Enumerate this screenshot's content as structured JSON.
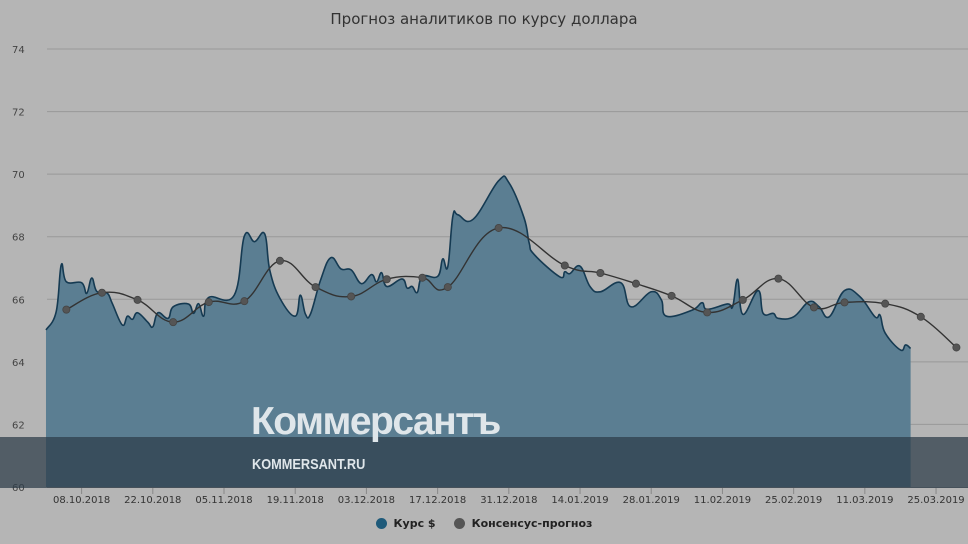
{
  "chart_data": {
    "type": "area",
    "title": "Прогноз аналитиков по курсу доллара",
    "xlabel": "",
    "ylabel": "",
    "ylim": [
      60,
      74
    ],
    "yticks": [
      "60",
      "62",
      "64",
      "66",
      "68",
      "70",
      "72",
      "74"
    ],
    "xticks": [
      "08.10.2018",
      "22.10.2018",
      "05.11.2018",
      "19.11.2018",
      "03.12.2018",
      "17.12.2018",
      "31.12.2018",
      "14.01.2019",
      "28.01.2019",
      "11.02.2019",
      "25.02.2019",
      "11.03.2019",
      "25.03.2019"
    ],
    "grid": true,
    "legend": "bottom",
    "colors": {
      "background": "#b5b5b5",
      "area_fill": "#5b7e92",
      "area_line": "#153a52",
      "consensus_line": "#333333",
      "consensus_point": "#555555",
      "legend_rate": "#1e5a7a"
    },
    "series": [
      {
        "name": "Курс $",
        "type": "area",
        "points": [
          [
            "01.10.2018",
            65.02
          ],
          [
            "03.10.2018",
            65.6
          ],
          [
            "04.10.2018",
            67.1
          ],
          [
            "05.10.2018",
            66.56
          ],
          [
            "08.10.2018",
            66.53
          ],
          [
            "09.10.2018",
            66.19
          ],
          [
            "10.10.2018",
            66.68
          ],
          [
            "11.10.2018",
            66.25
          ],
          [
            "13.10.2018",
            66.2
          ],
          [
            "14.10.2018",
            65.88
          ],
          [
            "16.10.2018",
            65.18
          ],
          [
            "17.10.2018",
            65.46
          ],
          [
            "18.10.2018",
            65.36
          ],
          [
            "19.10.2018",
            65.57
          ],
          [
            "21.10.2018",
            65.27
          ],
          [
            "22.10.2018",
            65.12
          ],
          [
            "23.10.2018",
            65.57
          ],
          [
            "25.10.2018",
            65.39
          ],
          [
            "26.10.2018",
            65.76
          ],
          [
            "29.10.2018",
            65.85
          ],
          [
            "30.10.2018",
            65.55
          ],
          [
            "31.10.2018",
            65.86
          ],
          [
            "01.11.2018",
            65.46
          ],
          [
            "02.11.2018",
            66.06
          ],
          [
            "07.11.2018",
            66.13
          ],
          [
            "09.11.2018",
            68.02
          ],
          [
            "11.11.2018",
            67.84
          ],
          [
            "13.11.2018",
            68.09
          ],
          [
            "14.11.2018",
            66.93
          ],
          [
            "16.11.2018",
            66.03
          ],
          [
            "19.11.2018",
            65.46
          ],
          [
            "20.11.2018",
            66.13
          ],
          [
            "21.11.2018",
            65.53
          ],
          [
            "22.11.2018",
            65.53
          ],
          [
            "24.11.2018",
            66.62
          ],
          [
            "26.11.2018",
            67.33
          ],
          [
            "28.11.2018",
            66.97
          ],
          [
            "30.11.2018",
            66.94
          ],
          [
            "02.12.2018",
            66.5
          ],
          [
            "04.12.2018",
            66.79
          ],
          [
            "05.12.2018",
            66.56
          ],
          [
            "06.12.2018",
            66.85
          ],
          [
            "07.12.2018",
            66.41
          ],
          [
            "10.12.2018",
            66.65
          ],
          [
            "11.12.2018",
            66.36
          ],
          [
            "12.12.2018",
            66.41
          ],
          [
            "13.12.2018",
            66.22
          ],
          [
            "14.12.2018",
            66.73
          ],
          [
            "17.12.2018",
            66.73
          ],
          [
            "18.12.2018",
            67.29
          ],
          [
            "19.12.2018",
            67.04
          ],
          [
            "20.12.2018",
            68.66
          ],
          [
            "21.12.2018",
            68.7
          ],
          [
            "24.12.2018",
            68.56
          ],
          [
            "29.12.2018",
            69.79
          ],
          [
            "31.12.2018",
            69.73
          ],
          [
            "03.01.2019",
            68.6
          ],
          [
            "04.01.2019",
            67.8
          ],
          [
            "05.01.2019",
            67.43
          ],
          [
            "10.01.2019",
            66.72
          ],
          [
            "11.01.2019",
            66.88
          ],
          [
            "12.01.2019",
            66.82
          ],
          [
            "14.01.2019",
            67.06
          ],
          [
            "16.01.2019",
            66.4
          ],
          [
            "18.01.2019",
            66.24
          ],
          [
            "22.01.2019",
            66.53
          ],
          [
            "24.01.2019",
            65.76
          ],
          [
            "28.01.2019",
            66.24
          ],
          [
            "30.01.2019",
            65.98
          ],
          [
            "31.01.2019",
            65.46
          ],
          [
            "05.02.2019",
            65.65
          ],
          [
            "07.02.2019",
            65.89
          ],
          [
            "08.02.2019",
            65.68
          ],
          [
            "12.02.2019",
            65.85
          ],
          [
            "13.02.2019",
            65.76
          ],
          [
            "14.02.2019",
            66.64
          ],
          [
            "15.02.2019",
            65.52
          ],
          [
            "18.02.2019",
            66.28
          ],
          [
            "19.02.2019",
            65.55
          ],
          [
            "21.02.2019",
            65.55
          ],
          [
            "22.02.2019",
            65.39
          ],
          [
            "25.02.2019",
            65.44
          ],
          [
            "28.02.2019",
            65.92
          ],
          [
            "02.03.2019",
            65.76
          ],
          [
            "04.03.2019",
            65.44
          ],
          [
            "07.03.2019",
            66.28
          ],
          [
            "10.03.2019",
            66.09
          ],
          [
            "13.03.2019",
            65.44
          ],
          [
            "14.03.2019",
            65.49
          ],
          [
            "15.03.2019",
            64.92
          ],
          [
            "18.03.2019",
            64.38
          ],
          [
            "19.03.2019",
            64.54
          ],
          [
            "20.03.2019",
            64.43
          ]
        ]
      },
      {
        "name": "Консенсус-прогноз",
        "type": "line",
        "points": [
          [
            "05.10.2018",
            65.67
          ],
          [
            "12.10.2018",
            66.21
          ],
          [
            "19.10.2018",
            65.98
          ],
          [
            "26.10.2018",
            65.27
          ],
          [
            "02.11.2018",
            65.91
          ],
          [
            "09.11.2018",
            65.94
          ],
          [
            "16.11.2018",
            67.23
          ],
          [
            "23.11.2018",
            66.39
          ],
          [
            "30.11.2018",
            66.09
          ],
          [
            "07.12.2018",
            66.64
          ],
          [
            "14.12.2018",
            66.69
          ],
          [
            "19.12.2018",
            66.39
          ],
          [
            "29.12.2018",
            68.28
          ],
          [
            "11.01.2019",
            67.08
          ],
          [
            "18.01.2019",
            66.84
          ],
          [
            "25.01.2019",
            66.5
          ],
          [
            "01.02.2019",
            66.11
          ],
          [
            "08.02.2019",
            65.58
          ],
          [
            "15.02.2019",
            65.98
          ],
          [
            "22.02.2019",
            66.66
          ],
          [
            "01.03.2019",
            65.74
          ],
          [
            "07.03.2019",
            65.9
          ],
          [
            "15.03.2019",
            65.86
          ],
          [
            "22.03.2019",
            65.44
          ],
          [
            "29.03.2019",
            64.46
          ]
        ]
      }
    ]
  },
  "watermark": {
    "logo": "Коммерсантъ",
    "site": "KOMMERSANT.RU"
  }
}
